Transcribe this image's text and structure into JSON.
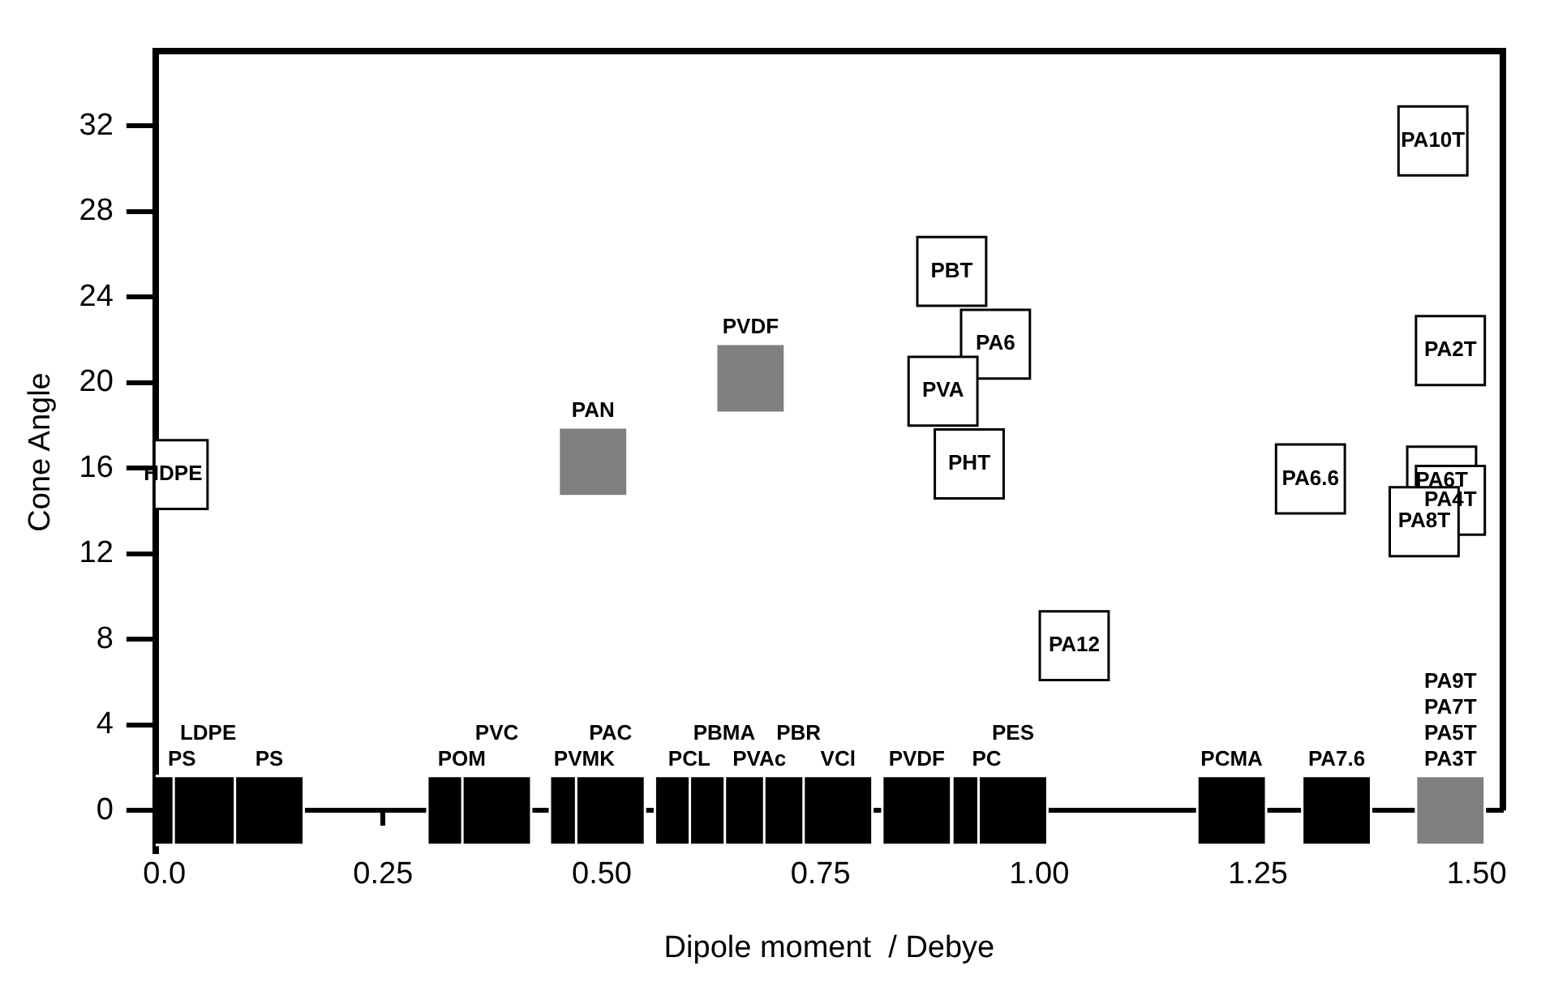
{
  "chart_data": {
    "type": "scatter",
    "xlabel": "Dipole moment  / Debye",
    "ylabel": "Cone Angle",
    "marker": "square",
    "grid": false,
    "legend": false,
    "xlim": [
      -0.01,
      1.53
    ],
    "ylim": [
      -2,
      35.5
    ],
    "xticks": [
      {
        "value": 0,
        "label": "0.0"
      },
      0.25,
      {
        "value": 0.5,
        "label": "0.50"
      },
      0.75,
      {
        "value": 1,
        "label": "1.00"
      },
      1.25,
      {
        "value": 1.5,
        "label": "1.50"
      }
    ],
    "yticks": [
      0,
      4,
      8,
      12,
      16,
      20,
      24,
      28,
      32
    ],
    "series": [
      {
        "color": "#000000",
        "x": [
          0.02,
          0.05,
          0.12,
          0.34,
          0.38,
          0.48,
          0.51,
          0.6,
          0.64,
          0.68,
          0.725,
          0.77,
          0.86,
          0.94,
          0.97,
          1.22,
          1.34
        ],
        "values": [
          0,
          0,
          0,
          0,
          0,
          0,
          0,
          0,
          0,
          0,
          0,
          0,
          0,
          0,
          0,
          0,
          0
        ],
        "value_labels": [
          "PS",
          "LDPE",
          "PS",
          "POM",
          "PVC",
          "PVMK",
          "PAC",
          "PCL",
          "PBMA",
          "PVAc",
          "PBR",
          "VCl",
          "PVDF",
          "PC",
          "PES",
          "PCMA",
          "PA7.6"
        ]
      },
      {
        "color": "#ffffff",
        "x": [
          0.01,
          0.9,
          0.95,
          0.89,
          0.92,
          1.04,
          1.31,
          1.45,
          1.47,
          1.46,
          1.47,
          1.44
        ],
        "values": [
          15.7,
          25.2,
          21.8,
          19.6,
          16.2,
          7.7,
          15.5,
          31.3,
          21.5,
          15.4,
          14.5,
          13.5
        ],
        "value_labels": [
          "HDPE",
          "PBT",
          "PA6",
          "PVA",
          "PHT",
          "PA12",
          "PA6.6",
          "PA10T",
          "PA2T",
          "PA6T",
          "PA4T",
          "PA8T"
        ]
      },
      {
        "color": "#808080",
        "x": [
          0.49,
          0.67,
          1.47
        ],
        "values": [
          16.3,
          20.2,
          0
        ],
        "value_labels": [
          "PAN",
          "PVDF",
          "PA9T\nPA7T\nPA5T\nPA3T"
        ]
      }
    ]
  }
}
